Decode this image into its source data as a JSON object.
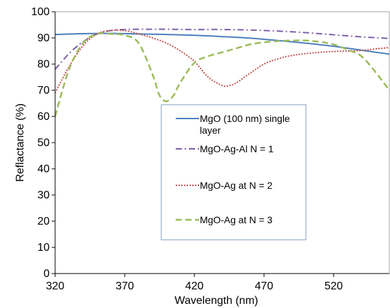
{
  "chart_data": {
    "type": "line",
    "title": "",
    "xlabel": "Wavelength (nm)",
    "ylabel": "Reflactance (%)",
    "xlim": [
      320,
      560
    ],
    "ylim": [
      0,
      100
    ],
    "x_ticks": [
      "320",
      "370",
      "420",
      "470",
      "520"
    ],
    "x_tick_values": [
      320,
      370,
      420,
      470,
      520
    ],
    "y_ticks": [
      "0",
      "10",
      "20",
      "30",
      "40",
      "50",
      "60",
      "70",
      "80",
      "90",
      "100"
    ],
    "y_tick_values": [
      0,
      10,
      20,
      30,
      40,
      50,
      60,
      70,
      80,
      90,
      100
    ],
    "grid": false,
    "legend_position": "center",
    "series": [
      {
        "name": "MgO (100 nm) single layer",
        "legend_lines": [
          "MgO (100 nm) single",
          "layer"
        ],
        "color": "#4a7ebb",
        "style": "solid",
        "x": [
          320,
          340,
          360,
          380,
          400,
          420,
          440,
          460,
          480,
          500,
          520,
          540,
          560
        ],
        "y": [
          91.3,
          91.6,
          91.7,
          91.5,
          91.3,
          91.0,
          90.5,
          89.9,
          89.0,
          88.0,
          86.8,
          85.3,
          83.8
        ]
      },
      {
        "name": "MgO-Ag-Al N = 1",
        "legend_lines": [
          "MgO-Ag-Al N = 1"
        ],
        "color": "#7b5ea7",
        "style": "dashdot",
        "x": [
          320,
          330,
          340,
          350,
          360,
          370,
          380,
          390,
          400,
          420,
          440,
          460,
          480,
          500,
          520,
          540,
          560
        ],
        "y": [
          78,
          84,
          88.5,
          91.5,
          92.8,
          93.2,
          93.3,
          93.3,
          93.3,
          93.2,
          93.2,
          93.0,
          92.6,
          92.0,
          91.2,
          90.4,
          89.8
        ]
      },
      {
        "name": "MgO-Ag at N = 2",
        "legend_lines": [
          "MgO-Ag at N = 2"
        ],
        "color": "#c0504d",
        "style": "dotted",
        "x": [
          320,
          330,
          340,
          350,
          360,
          370,
          380,
          390,
          400,
          410,
          420,
          430,
          440,
          445,
          450,
          460,
          470,
          480,
          490,
          500,
          510,
          520,
          530,
          540,
          550,
          560
        ],
        "y": [
          69,
          79,
          87,
          91.5,
          92.8,
          92.8,
          91.5,
          90,
          88,
          85,
          81,
          75,
          71.8,
          71.8,
          72.8,
          76.5,
          80,
          82,
          83.3,
          84,
          84.5,
          84.8,
          85,
          85.2,
          85.8,
          86.3
        ]
      },
      {
        "name": "MgO-Ag at N = 3",
        "legend_lines": [
          "MgO-Ag at N = 3"
        ],
        "color": "#9bbb59",
        "style": "dashed",
        "x": [
          320,
          330,
          340,
          350,
          360,
          370,
          380,
          390,
          395,
          400,
          405,
          410,
          420,
          430,
          440,
          450,
          460,
          470,
          480,
          490,
          500,
          510,
          520,
          530,
          540,
          550,
          560
        ],
        "y": [
          60,
          78,
          88,
          91.5,
          91.5,
          91,
          88,
          76,
          68,
          65.8,
          68,
          73,
          80.5,
          83,
          84.5,
          86,
          87.5,
          88.3,
          88.8,
          89,
          89,
          88.5,
          87.5,
          85.5,
          83,
          77,
          70
        ]
      }
    ]
  }
}
